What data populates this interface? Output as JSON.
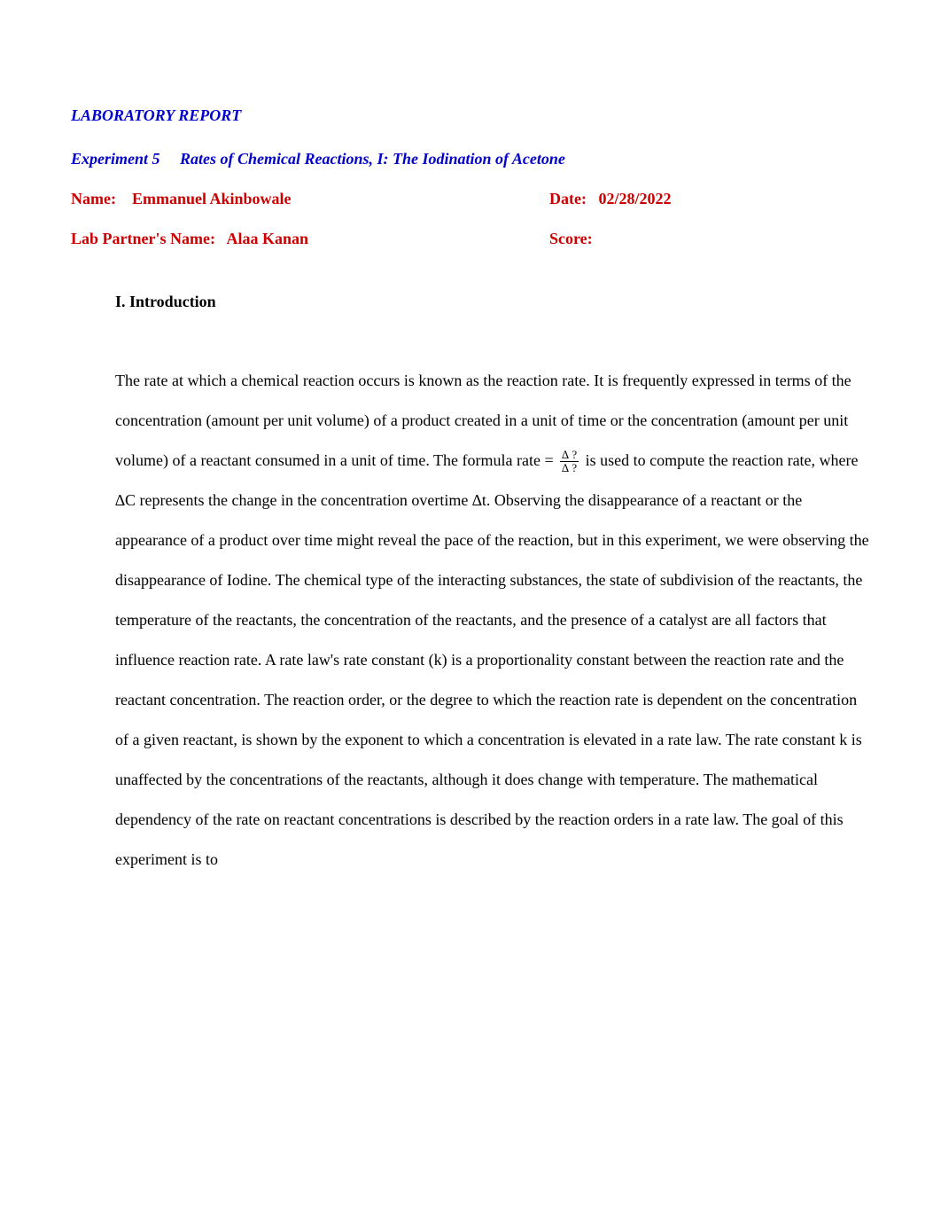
{
  "colors": {
    "heading_blue": "#0000cc",
    "heading_red": "#cc0000",
    "body_text": "#000000",
    "background": "#ffffff"
  },
  "typography": {
    "font_family": "Times New Roman",
    "body_fontsize_pt": 14,
    "heading_fontsize_pt": 14,
    "line_spacing": 2.5
  },
  "header": {
    "report_label": "LABORATORY REPORT",
    "experiment_number": "Experiment 5",
    "experiment_title": "Rates of Chemical Reactions, I: The Iodination of Acetone"
  },
  "info": {
    "name_label": "Name:",
    "name_value": "Emmanuel Akinbowale",
    "date_label": "Date:",
    "date_value": "02/28/2022",
    "partner_label": "Lab Partner's Name:",
    "partner_value": "Alaa Kanan",
    "score_label": "Score:"
  },
  "section": {
    "heading": "I. Introduction",
    "frac_num": "∆ ?",
    "frac_den": "∆ ?",
    "p1_a": "The rate at which a chemical reaction occurs is known as the reaction rate. It is frequently expressed in terms of the concentration (amount per unit volume) of a product created in a unit of time or the concentration (amount per unit volume) of a reactant consumed in a unit of time. The formula rate = ",
    "p1_b": " is used to compute the reaction rate, where  ∆C represents the change in the concentration overtime  ∆t. Observing the disappearance of a reactant or the appearance of a product over time might reveal the pace of the reaction, but in this experiment, we were observing the disappearance of Iodine. The chemical type of the interacting substances, the state of subdivision of the reactants, the temperature of the reactants, the concentration of the reactants, and the presence of a catalyst are all factors that influence reaction rate. A rate law's rate constant (k) is a proportionality constant between the reaction rate and the reactant concentration. The reaction order, or the degree to which the reaction rate is dependent on the concentration of a given reactant, is shown by the exponent to which a concentration is elevated in a rate law. The rate constant k is unaffected by the concentrations of the reactants, although it does change with temperature. The mathematical dependency of the rate on reactant concentrations is described by the reaction orders in a rate law. The goal of this experiment is to"
  }
}
